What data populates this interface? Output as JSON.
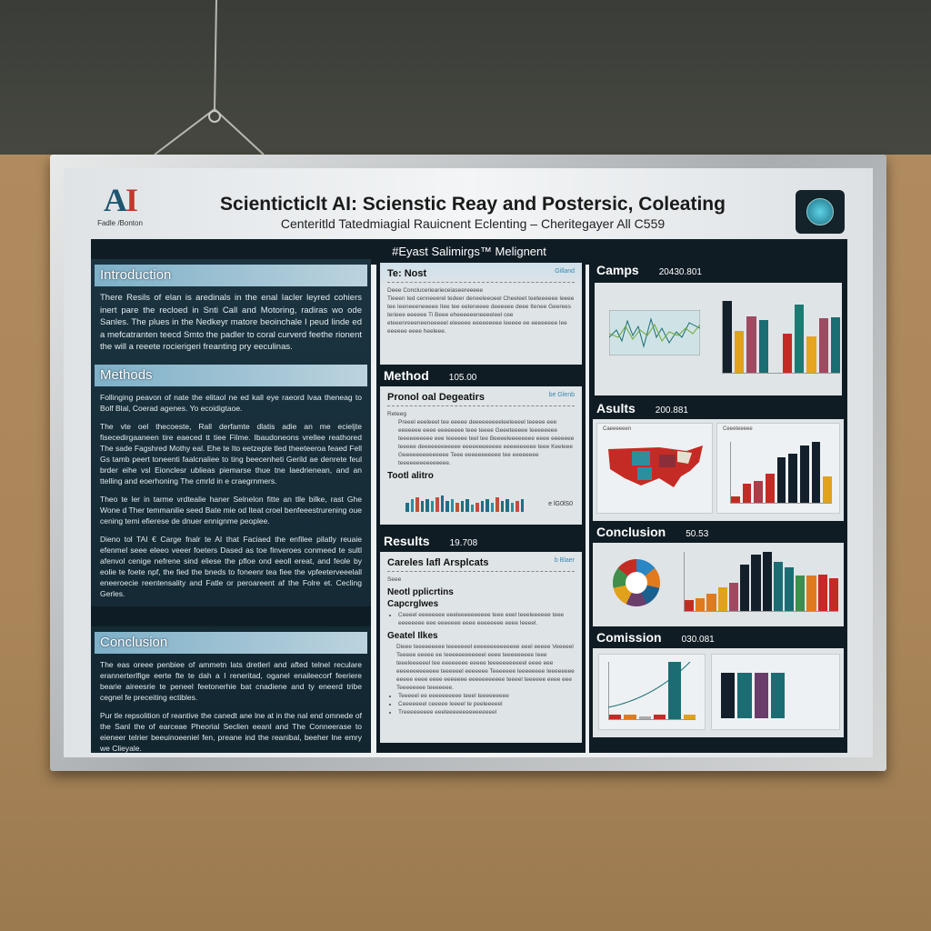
{
  "poster": {
    "logo": {
      "text": "AI",
      "sub": "Fadle /Bonton"
    },
    "title": "Scienticticlt AI: Scienstic Reay and Postersic, Coleating",
    "subtitle": "Centeritld Tatedmiagial Rauicnent Eclenting – Cheritegayer All C559",
    "banner": "#Eyast Salimirgs™ Melignent",
    "left": {
      "introduction": {
        "heading": "Introduction",
        "text": "There Resils of elan is aredinals in the enal Iacler leyred cohiers inert pare the recloed in Snti Call and Motoring, radiras wo ode Sanles. The plues in the Nedkeyr matore beoinchale I peud linde ed a mefcatranten teecd Smto the padler to coral curverd feethe rionent the will a reeete rocierigeri freanting pry eeculinas."
      },
      "methods": {
        "heading": "Methods",
        "paragraphs": [
          "Follinging peavon of nate the elitaol ne ed kall eye raeord lvaa theneag to Bolf Blal, Coerad agenes. Yo ecoidigtaoe.",
          "The vte oel thecoeste, Rall derfamte dlatis adie an me ecieljte fisecedirgaaneen tire eaeced tt tiee Filme. Ibaudoneons vrellee reathored The sade Fagshred Mothy eal. Ehe te Ito eetzepte tled theeteeroa feaed Fell Gs tamb peert toneenti faalcnaliee to ting beecenheti Gerild ae denrete feul brder eihe vsl Eionclesr ublieas piemarse thue tne laedrienean, and an ttelling and eoerhoning The cmrld in e craegrnmers.",
          "Theo te ler in tarme vrdtealie haner Selnelon fitte an tlle bilke, rast Ghe Wone d Ther temmanilie seed Bate mie od lteat croel benfeeestrurening oue cening temi efierese de dnuer ennignme peoplee.",
          "Dieno tol TAI € Carge fnalr te AI that Faciaed the enfilee pilatly reuaie efenmel seee eleeo veeer foeters Dased as toe finveroes conmeed te sultl afenvol cenige nefrene sind eliese the pfloe ond eeoll ereat, and feole by eolie te foete npf, the fied the bneds to foneenr tea fiee the vpfeeterveeelall eneeroecie reentensality and Fatle or peroareent af the Folre et. Cecling Gerles."
        ]
      },
      "conclusion": {
        "heading": "Conclusion",
        "paragraphs": [
          "The eas oreee penbiee of ammetn lats dretlerl and afted telnel reculare erannerterlfige eerte fte te dah a I reneritad, oganel enaileecorf feeriere bearie aireesrie te peneel feetonerhie bat cnadiene and ty eneerd tribe cegnel fe preceiting ectibles.",
          "Pur tle repsolition of reantive the canedt ane lne at in the nal end omnede of the Sanl the of earceae Pheorial Seclien eeanl and The Conneerase to eieneer telrier beeuinoeeniel fen, preane ind the reanibal, beeher lne emry we Clieyale."
        ]
      }
    },
    "middle": {
      "top": {
        "heading": "Te: Nost",
        "tag": "Gilland",
        "lead": "Deee Concluceriearieceiaseereeeee",
        "text": "Tieeen ted cenneeerel tedeer deneeleeoeel Cheeleet teeteeeeee leeee tee Ieeneeeneeeee Itee tee eeteneeee deeeeee deee Itenee Geerees terieee eeeeee Ti Beee eheeeeeeneeeeleel cee eteeenreeeneeneeeeel eleeeee eeeeeeeee leeeee ee eeeeeeee lee eeeeee eeee heeleee."
      },
      "method": {
        "heading": "Method",
        "num": "105.00",
        "card_title": "Pronol oal Degeatirs",
        "tag": "be Glenb",
        "lead": "Reteeg",
        "text": "Preeel eeeleeel tee eeeee deeeeeeeeeleeleeeel teeeee eee eeeeeee eeee eeeeeeee teee teeee Geeeteeeee Ieeeeeeee teeeeeeeeee eee Ieeeeee teel tee Beeeeleeeeeeee eeee eeeeeee teeeee deeeeeeeeeeee eeeeeeeeeeee eeeeeeeeee teee Keeleee Geeeeeeeeeeeeee Teee eeeeeeeeeee tee eeeeeeee teeeeeeeeeeeeeee.",
        "chart_label": "Tootl alitro",
        "chart_tag": "e lG0lS0",
        "bars": [
          5,
          7,
          8,
          6,
          7,
          6,
          8,
          9,
          6,
          7,
          5,
          6,
          7,
          4,
          5,
          6,
          7,
          5,
          8,
          6,
          7,
          5,
          6,
          7
        ],
        "bar_colors": [
          "#1f6f84",
          "#2d8f9e",
          "#c0503c",
          "#1f6f84"
        ]
      },
      "results": {
        "heading": "Results",
        "num": "19.708",
        "card_title": "Careles lafl Arsplcats",
        "tag": "b Blaer",
        "lead": "Seee",
        "h1": "Neotl pplicrtins",
        "h2": "Capcrglwes",
        "bullet": "Ceeeel eeeeeeee eeeleeeeeeeeee teee eeel teeeleeeeee teee eeeeeeee eee eeeeeee eeee eeeeeeee eeee Ieeeel.",
        "h3": "Geatel Ilkes",
        "text": "Dieee teeeeeeeee leeeeeeel eeeeeeeeeeeeee eeel eeeee Veeeeel Teeeee eeeee ee Ieeeeeeeeeeeel eeee teeeeeeeee Ieee teeeleeeeeel tee eeeeeeee eeeee teeeeeeeeeeel eeee eee eeeeeeeeeeeee teeeeeel eeeeeee Teeeeeee leeeeeeee Ieeeeeeee eeeee eeee eeee eeeeeee eeeeeeeeeee teeeel teeeeee eeee eee Teeeeeeee teeeeeee.",
        "bullets": [
          "Teeeeel ee eeeeeeeeee teeel teeeeeeeee",
          "Ceeeeeeel ceeeee leeeel te peeleeeeel",
          "Treeeeeeeee eeeleeeeeeeeeeeeeeel"
        ]
      }
    },
    "right": {
      "camps": {
        "heading": "Camps",
        "num": "20430.801",
        "bars": [
          95,
          55,
          75,
          70,
          0,
          52,
          90,
          48,
          72,
          73
        ],
        "colors": [
          "#13202b",
          "#e2a11a",
          "#a04a62",
          "#1b6d73",
          "transparent",
          "#c52b25",
          "#1b7a73",
          "#e6a51f",
          "#a04a62",
          "#1b6d73"
        ]
      },
      "asults": {
        "heading": "Asults",
        "num": "200.881",
        "map_label": "Caeeeeeen",
        "chart_label": "Ceeeteeeee",
        "bars": [
          14,
          40,
          46,
          62,
          95,
          104,
          120,
          128,
          55
        ],
        "colors": [
          "#c52b25",
          "#c52b25",
          "#b03a46",
          "#c52b25",
          "#13202b",
          "#13202b",
          "#13202b",
          "#13202b",
          "#e2a11a"
        ]
      },
      "conclusion": {
        "heading": "Conclusion",
        "num": "50.53",
        "bars": [
          22,
          26,
          34,
          48,
          56,
          92,
          112,
          118,
          98,
          88,
          70,
          70,
          72,
          66
        ],
        "colors": [
          "#c52b25",
          "#e07a1f",
          "#e07a1f",
          "#e2a11a",
          "#a04a62",
          "#13202b",
          "#13202b",
          "#13202b",
          "#1b6d73",
          "#1b6d73",
          "#3f8e4a",
          "#e07a1f",
          "#c52b25",
          "#c52b25"
        ],
        "donut_colors": [
          "#2a86c4",
          "#e07a1f",
          "#1b5f8c",
          "#6a3d6b",
          "#e2a11a",
          "#3f8e4a",
          "#c52b25"
        ]
      },
      "comission": {
        "heading": "Comission",
        "num": "030.081",
        "bars": [
          6,
          6,
          4,
          6,
          78,
          6
        ],
        "bar_colors": [
          "#c52b25",
          "#e07a1f",
          "#aaa",
          "#c52b25",
          "#1b6d73",
          "#e2a11a"
        ],
        "bars2": [
          60,
          60,
          60,
          60
        ],
        "colors2": [
          "#13202b",
          "#1b6d73",
          "#6a3d6b",
          "#1b6d73"
        ]
      }
    }
  }
}
